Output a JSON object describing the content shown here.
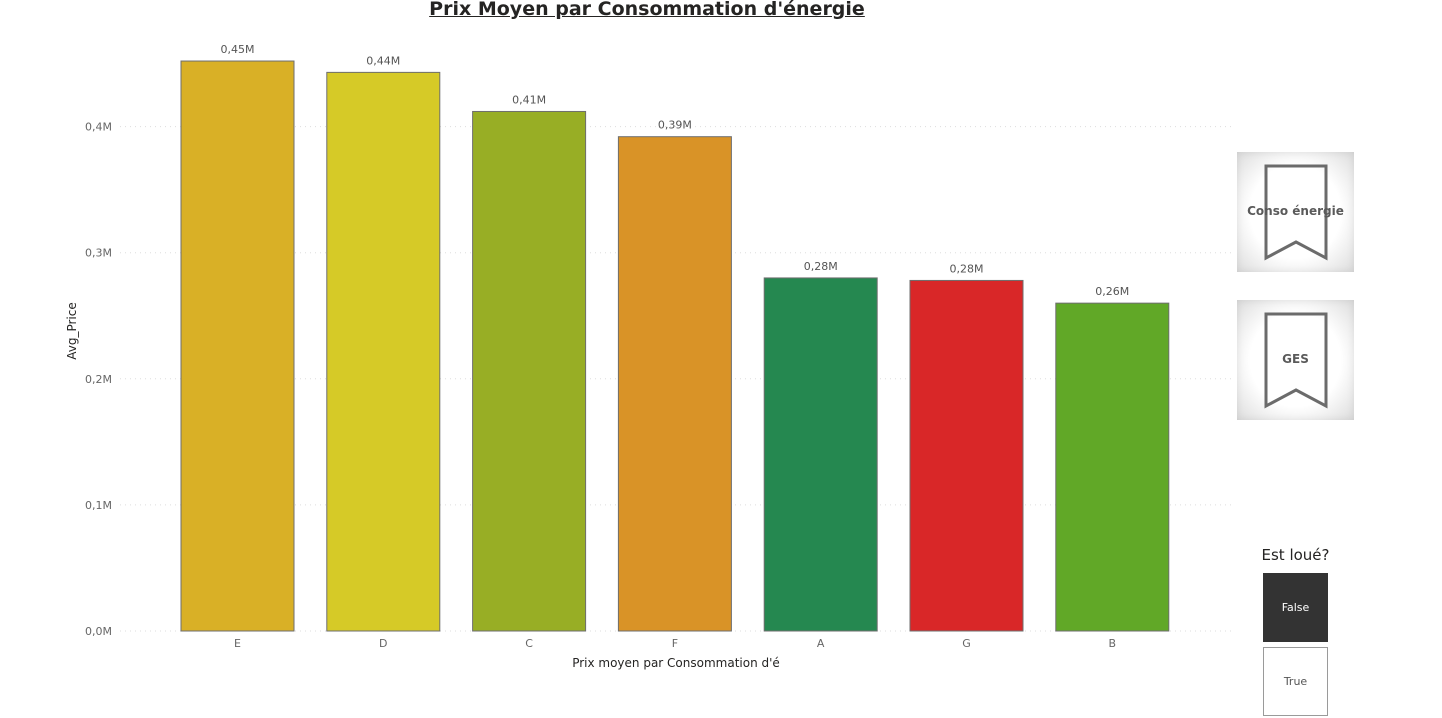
{
  "chart_data": {
    "type": "bar",
    "title": "Prix Moyen par Consommation d'énergie",
    "xlabel": "Prix moyen par Consommation d'é",
    "ylabel": "Avg_Price",
    "ylim": [
      0,
      0.5
    ],
    "yticks": [
      "0,0M",
      "0,1M",
      "0,2M",
      "0,3M",
      "0,4M"
    ],
    "grid": "horizontal dotted",
    "categories": [
      "E",
      "D",
      "C",
      "F",
      "A",
      "G",
      "B"
    ],
    "values": [
      0.452,
      0.443,
      0.412,
      0.392,
      0.28,
      0.278,
      0.26
    ],
    "data_labels": [
      "0,45M",
      "0,44M",
      "0,41M",
      "0,39M",
      "0,28M",
      "0,28M",
      "0,26M"
    ],
    "colors": [
      "#d9b026",
      "#d6ca27",
      "#98ae25",
      "#d99327",
      "#258850",
      "#d92728",
      "#61a827"
    ]
  },
  "buttons": {
    "conso_label": "Conso énergie",
    "ges_label": "GES"
  },
  "slicer": {
    "title": "Est loué?",
    "options": [
      "False",
      "True"
    ],
    "selected": "False"
  }
}
